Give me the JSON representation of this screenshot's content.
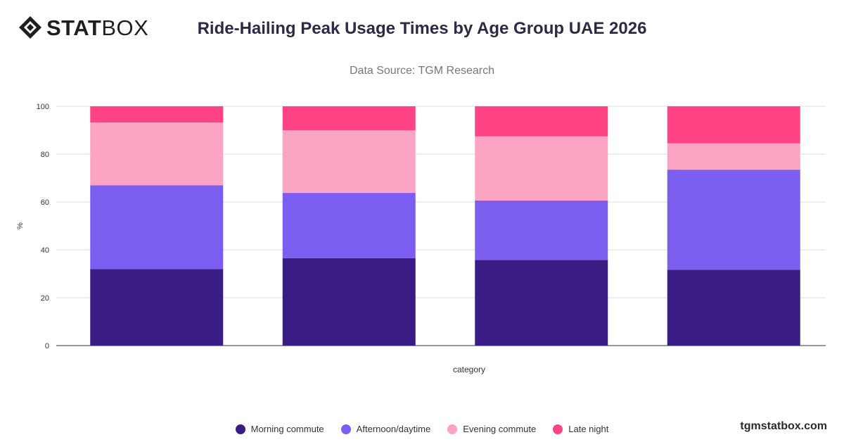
{
  "brand": {
    "logo_bold": "STAT",
    "logo_light": "BOX",
    "site": "tgmstatbox.com"
  },
  "header": {
    "title": "Ride-Hailing Peak Usage Times by Age Group UAE 2026",
    "subtitle": "Data Source: TGM Research"
  },
  "chart_data": {
    "type": "bar",
    "stacked": true,
    "title": "Ride-Hailing Peak Usage Times by Age Group UAE 2026",
    "subtitle": "Data Source: TGM Research",
    "xlabel": "category",
    "ylabel": "%",
    "ylim": [
      0,
      100
    ],
    "yticks": [
      0,
      20,
      40,
      60,
      80,
      100
    ],
    "grid": true,
    "legend_position": "bottom",
    "categories": [
      "",
      "",
      "",
      ""
    ],
    "series": [
      {
        "name": "Morning commute",
        "color": "#3a1c85",
        "values": [
          32,
          36.5,
          35.8,
          31.7
        ]
      },
      {
        "name": "Afternoon/daytime",
        "color": "#7b5eef",
        "values": [
          35,
          27.3,
          24.8,
          41.8
        ]
      },
      {
        "name": "Evening commute",
        "color": "#fba4c4",
        "values": [
          26.2,
          26.2,
          26.8,
          11
        ]
      },
      {
        "name": "Late night",
        "color": "#ff4384",
        "values": [
          6.8,
          10,
          12.6,
          15.5
        ]
      }
    ]
  }
}
